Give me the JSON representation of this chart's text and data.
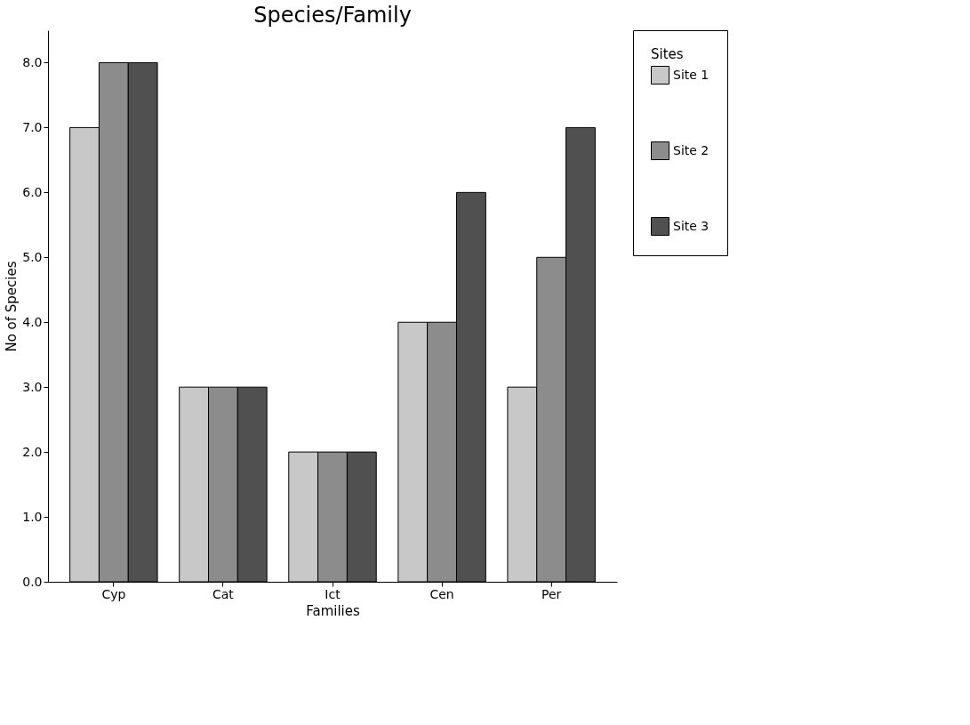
{
  "chart_data": {
    "type": "bar",
    "title": "Species/Family",
    "xlabel": "Families",
    "ylabel": "No of Species",
    "legend_title": "Sites",
    "categories": [
      "Cyp",
      "Cat",
      "Ict",
      "Cen",
      "Per"
    ],
    "series": [
      {
        "name": "Site 1",
        "color": "#c8c8c8",
        "values": [
          7,
          3,
          2,
          4,
          3
        ]
      },
      {
        "name": "Site 2",
        "color": "#8c8c8c",
        "values": [
          8,
          3,
          2,
          4,
          5
        ]
      },
      {
        "name": "Site 3",
        "color": "#505050",
        "values": [
          8,
          3,
          2,
          6,
          7
        ]
      }
    ],
    "ylim": [
      0,
      8.5
    ],
    "yticks": [
      {
        "value": 0,
        "label": "0.0"
      },
      {
        "value": 1,
        "label": "1.0"
      },
      {
        "value": 2,
        "label": "2.0"
      },
      {
        "value": 3,
        "label": "3.0"
      },
      {
        "value": 4,
        "label": "4.0"
      },
      {
        "value": 5,
        "label": "5.0"
      },
      {
        "value": 6,
        "label": "6.0"
      },
      {
        "value": 7,
        "label": "7.0"
      },
      {
        "value": 8,
        "label": "8.0"
      }
    ],
    "grid": false,
    "legend": "right"
  }
}
